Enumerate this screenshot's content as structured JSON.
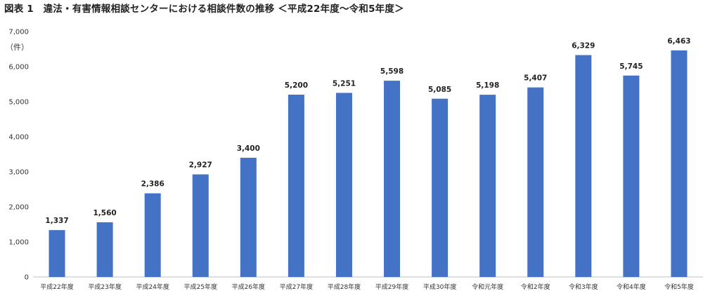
{
  "chart_data": {
    "type": "bar",
    "title": "図表 1　違法・有害情報相談センターにおける相談件数の推移 ＜平成22年度～令和5年度＞",
    "ylabel": "（件）",
    "xlabel": "",
    "ylim": [
      0,
      7000
    ],
    "yticks": [
      "0",
      "1,000",
      "2,000",
      "3,000",
      "4,000",
      "5,000",
      "6,000",
      "7,000"
    ],
    "categories": [
      "平成22年度",
      "平成23年度",
      "平成24年度",
      "平成25年度",
      "平成26年度",
      "平成27年度",
      "平成28年度",
      "平成29年度",
      "平成30年度",
      "令和元年度",
      "令和2年度",
      "令和3年度",
      "令和4年度",
      "令和5年度"
    ],
    "values": [
      1337,
      1560,
      2386,
      2927,
      3400,
      5200,
      5251,
      5598,
      5085,
      5198,
      5407,
      6329,
      5745,
      6463
    ],
    "labels": [
      "1,337",
      "1,560",
      "2,386",
      "2,927",
      "3,400",
      "5,200",
      "5,251",
      "5,598",
      "5,085",
      "5,198",
      "5,407",
      "6,329",
      "5,745",
      "6,463"
    ],
    "bar_color": "#4472c4",
    "grid": false,
    "legend": "none"
  }
}
